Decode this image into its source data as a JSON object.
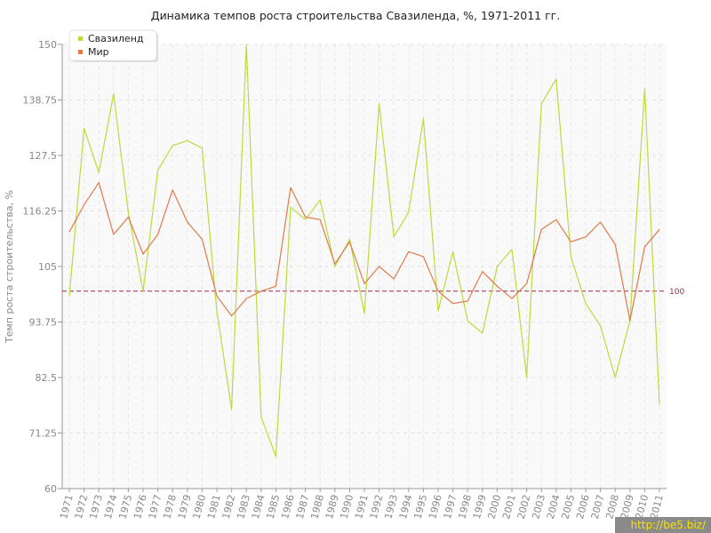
{
  "chart_data": {
    "type": "line",
    "title": "Динамика темпов роста строительства Свазиленда, %, 1971-2011 гг.",
    "xlabel": "",
    "ylabel": "Темп роста строительства, %",
    "ylim": [
      60,
      150
    ],
    "yticks": [
      "150",
      "138.75",
      "127.5",
      "116.25",
      "105",
      "93.75",
      "82.5",
      "71.25",
      "60"
    ],
    "categories": [
      "1971",
      "1972",
      "1973",
      "1974",
      "1975",
      "1976",
      "1977",
      "1978",
      "1979",
      "1980",
      "1981",
      "1982",
      "1983",
      "1984",
      "1985",
      "1986",
      "1987",
      "1988",
      "1989",
      "1990",
      "1991",
      "1992",
      "1993",
      "1994",
      "1995",
      "1996",
      "1997",
      "1998",
      "1999",
      "2000",
      "2001",
      "2002",
      "2003",
      "2004",
      "2005",
      "2006",
      "2007",
      "2008",
      "2009",
      "2010",
      "2011"
    ],
    "series": [
      {
        "name": "Свазиленд",
        "color": "#bcdb3c",
        "values": [
          99,
          133,
          124,
          140,
          116,
          100,
          124.5,
          129.5,
          130.5,
          129,
          96,
          76,
          150,
          74.5,
          66.5,
          117,
          114.5,
          118.5,
          105,
          110.5,
          95.5,
          138,
          111,
          116,
          135,
          96,
          108,
          94,
          91.5,
          105,
          108.5,
          82.5,
          138,
          143,
          107,
          97.5,
          93,
          82.5,
          94,
          141,
          77
        ]
      },
      {
        "name": "Мир",
        "color": "#e07a4a",
        "values": [
          112,
          117.5,
          122,
          111.5,
          115,
          107.5,
          111.5,
          120.5,
          114,
          110.5,
          99,
          95,
          98.5,
          100,
          101,
          121,
          115,
          114.5,
          105.5,
          110,
          101.5,
          105,
          102.5,
          108,
          107,
          100,
          97.5,
          98,
          104,
          101,
          98.5,
          101.5,
          112.5,
          114.5,
          110,
          111,
          114,
          109.5,
          94,
          109,
          112.5
        ]
      }
    ],
    "reference_line": {
      "value": 100,
      "label": "100",
      "color": "#9b2d4a"
    },
    "grid": true,
    "legend_position": "top-left"
  },
  "watermark": "http://be5.biz/"
}
